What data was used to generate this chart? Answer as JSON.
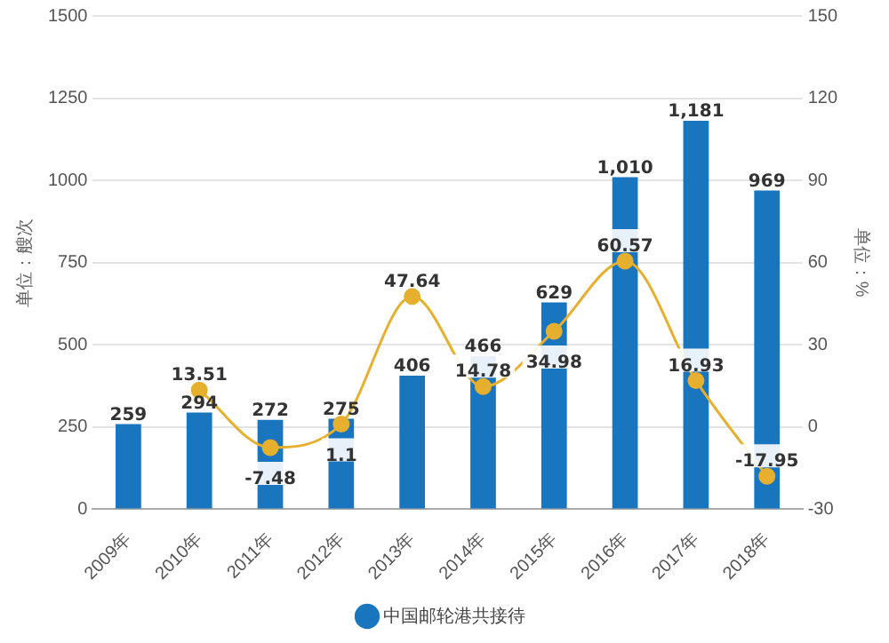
{
  "chart_data": {
    "type": "bar",
    "categories": [
      "2009年",
      "2010年",
      "2011年",
      "2012年",
      "2013年",
      "2014年",
      "2015年",
      "2016年",
      "2017年",
      "2018年"
    ],
    "series": [
      {
        "name": "中国邮轮港共接待",
        "color": "#1a75bf",
        "values": [
          259,
          294,
          272,
          275,
          406,
          466,
          629,
          1010,
          1181,
          969
        ],
        "value_labels": [
          "259",
          "294",
          "272",
          "275",
          "406",
          "466",
          "629",
          "1,010",
          "1,181",
          "969"
        ]
      },
      {
        "type": "line",
        "axis": "y2",
        "color": "#e6b02e",
        "values": [
          null,
          13.51,
          -7.48,
          1.1,
          47.64,
          14.78,
          34.98,
          60.57,
          16.93,
          -17.95
        ],
        "value_labels": [
          null,
          "13.51",
          "-7.48",
          "1.1",
          "47.64",
          "14.78",
          "34.98",
          "60.57",
          "16.93",
          "-17.95"
        ]
      }
    ],
    "ylabel": "单位：艘次",
    "y2label": "单位：%",
    "ylim": [
      0,
      1500
    ],
    "yticks": [
      0,
      250,
      500,
      750,
      1000,
      1250,
      1500
    ],
    "y2lim": [
      -30,
      150
    ],
    "y2ticks": [
      -30,
      0,
      30,
      60,
      90,
      120,
      150
    ],
    "grid": "y",
    "legend": "bottom",
    "marker": "circle"
  }
}
